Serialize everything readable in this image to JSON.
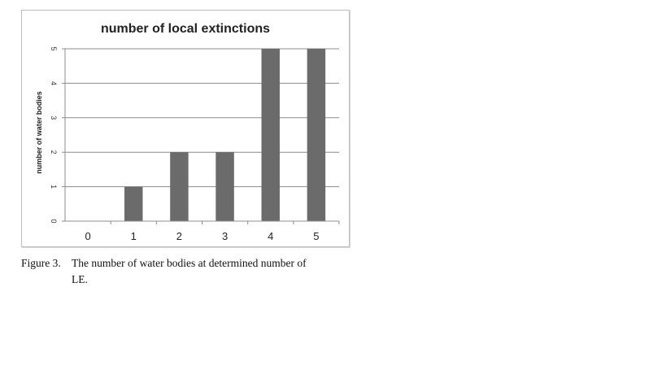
{
  "chart_data": {
    "type": "bar",
    "title": "number of local extinctions",
    "xlabel": "",
    "ylabel": "number of water bodies",
    "categories": [
      "0",
      "1",
      "2",
      "3",
      "4",
      "5"
    ],
    "values": [
      0,
      1,
      2,
      2,
      5,
      5
    ],
    "ylim": [
      0,
      5
    ],
    "yticks": [
      "0",
      "1",
      "2",
      "3",
      "4",
      "5"
    ],
    "grid": true,
    "legend": "none",
    "bar_color": "#6b6b6b"
  },
  "caption": {
    "number": "Figure 3.",
    "line1": "The number of water bodies at determined number of",
    "line2": "LE."
  }
}
